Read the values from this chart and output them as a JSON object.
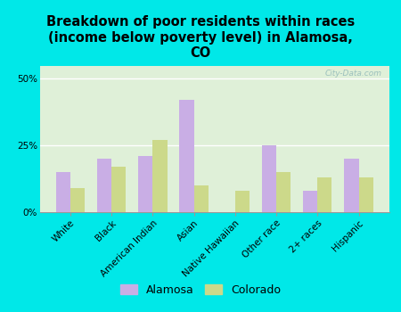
{
  "title": "Breakdown of poor residents within races\n(income below poverty level) in Alamosa,\nCO",
  "categories": [
    "White",
    "Black",
    "American Indian",
    "Asian",
    "Native Hawaiian",
    "Other race",
    "2+ races",
    "Hispanic"
  ],
  "alamosa_values": [
    15,
    20,
    21,
    42,
    0,
    25,
    8,
    20
  ],
  "colorado_values": [
    9,
    17,
    27,
    10,
    8,
    15,
    13,
    13
  ],
  "alamosa_color": "#c9aee5",
  "colorado_color": "#ccd98a",
  "background_outer": "#00e8e8",
  "background_inner": "#dff0d8",
  "ylim": [
    0,
    55
  ],
  "yticks": [
    0,
    25,
    50
  ],
  "ytick_labels": [
    "0%",
    "25%",
    "50%"
  ],
  "bar_width": 0.35,
  "title_fontsize": 10.5,
  "tick_fontsize": 7.5,
  "legend_fontsize": 9,
  "watermark": "City-Data.com"
}
